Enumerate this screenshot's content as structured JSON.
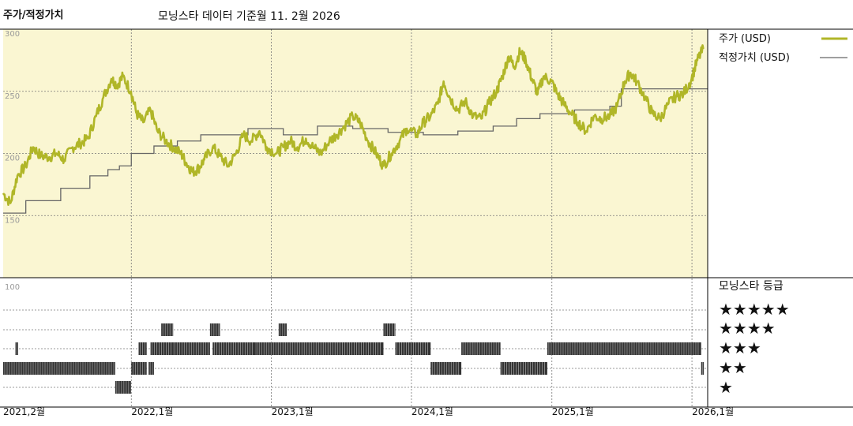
{
  "header": {
    "title": "주가/적정가치",
    "subtitle": "모닝스타 데이터 기준월 11. 2월 2026"
  },
  "legend": {
    "price_label": "주가 (USD)",
    "fair_value_label": "적정가치 (USD)",
    "rating_title": "모닝스타 등급",
    "star_rows": [
      "★★★★★",
      "★★★★",
      "★★★",
      "★★",
      "★"
    ]
  },
  "colors": {
    "price": "#b0b628",
    "fair_value": "#666666",
    "plot_bg": "#faf6d2",
    "rating_bar": "#333333"
  },
  "chart_data": {
    "type": "line",
    "x_axis": {
      "start": "2021-02",
      "end": "2026-02",
      "tick_labels": [
        "2021,2월",
        "2022,1월",
        "2023,1월",
        "2024,1월",
        "2025,1월",
        "2026,1월"
      ],
      "tick_dates": [
        "2021-02",
        "2022-01",
        "2023-01",
        "2024-01",
        "2025-01",
        "2026-01"
      ]
    },
    "price_panel": {
      "ylim": [
        100,
        300
      ],
      "y_ticks": [
        300,
        250,
        200,
        150
      ],
      "series": [
        {
          "name": "주가 (USD)",
          "points": [
            [
              "2021-02-01",
              168
            ],
            [
              "2021-02-20",
              160
            ],
            [
              "2021-03-10",
              182
            ],
            [
              "2021-04-01",
              190
            ],
            [
              "2021-04-20",
              205
            ],
            [
              "2021-05-10",
              198
            ],
            [
              "2021-06-01",
              197
            ],
            [
              "2021-06-20",
              200
            ],
            [
              "2021-07-10",
              195
            ],
            [
              "2021-08-01",
              205
            ],
            [
              "2021-08-20",
              208
            ],
            [
              "2021-09-10",
              212
            ],
            [
              "2021-10-01",
              230
            ],
            [
              "2021-10-20",
              245
            ],
            [
              "2021-11-10",
              260
            ],
            [
              "2021-11-25",
              255
            ],
            [
              "2021-12-10",
              262
            ],
            [
              "2021-12-31",
              250
            ],
            [
              "2022-01-15",
              232
            ],
            [
              "2022-02-01",
              225
            ],
            [
              "2022-02-20",
              235
            ],
            [
              "2022-03-10",
              218
            ],
            [
              "2022-04-01",
              210
            ],
            [
              "2022-04-20",
              205
            ],
            [
              "2022-05-10",
              200
            ],
            [
              "2022-05-25",
              192
            ],
            [
              "2022-06-10",
              185
            ],
            [
              "2022-06-25",
              188
            ],
            [
              "2022-07-10",
              195
            ],
            [
              "2022-08-01",
              205
            ],
            [
              "2022-08-20",
              198
            ],
            [
              "2022-09-10",
              190
            ],
            [
              "2022-10-01",
              200
            ],
            [
              "2022-10-20",
              215
            ],
            [
              "2022-11-10",
              210
            ],
            [
              "2022-12-01",
              218
            ],
            [
              "2022-12-20",
              205
            ],
            [
              "2023-01-15",
              200
            ],
            [
              "2023-02-01",
              205
            ],
            [
              "2023-02-20",
              210
            ],
            [
              "2023-03-10",
              205
            ],
            [
              "2023-04-01",
              212
            ],
            [
              "2023-04-20",
              205
            ],
            [
              "2023-05-10",
              200
            ],
            [
              "2023-06-01",
              210
            ],
            [
              "2023-06-20",
              215
            ],
            [
              "2023-07-10",
              222
            ],
            [
              "2023-08-01",
              230
            ],
            [
              "2023-08-20",
              225
            ],
            [
              "2023-09-10",
              210
            ],
            [
              "2023-10-01",
              200
            ],
            [
              "2023-10-20",
              190
            ],
            [
              "2023-11-10",
              200
            ],
            [
              "2023-12-01",
              210
            ],
            [
              "2023-12-20",
              220
            ],
            [
              "2024-01-15",
              215
            ],
            [
              "2024-02-01",
              225
            ],
            [
              "2024-02-20",
              230
            ],
            [
              "2024-03-10",
              240
            ],
            [
              "2024-03-25",
              258
            ],
            [
              "2024-04-10",
              245
            ],
            [
              "2024-05-01",
              235
            ],
            [
              "2024-05-20",
              242
            ],
            [
              "2024-06-10",
              230
            ],
            [
              "2024-07-01",
              228
            ],
            [
              "2024-07-20",
              240
            ],
            [
              "2024-08-10",
              250
            ],
            [
              "2024-08-25",
              262
            ],
            [
              "2024-09-10",
              278
            ],
            [
              "2024-09-25",
              270
            ],
            [
              "2024-10-10",
              282
            ],
            [
              "2024-10-25",
              275
            ],
            [
              "2024-11-10",
              260
            ],
            [
              "2024-11-25",
              248
            ],
            [
              "2024-12-10",
              262
            ],
            [
              "2024-12-31",
              258
            ],
            [
              "2025-01-15",
              248
            ],
            [
              "2025-02-01",
              240
            ],
            [
              "2025-02-20",
              232
            ],
            [
              "2025-03-10",
              225
            ],
            [
              "2025-04-01",
              218
            ],
            [
              "2025-04-20",
              230
            ],
            [
              "2025-05-10",
              228
            ],
            [
              "2025-06-01",
              230
            ],
            [
              "2025-06-20",
              238
            ],
            [
              "2025-07-10",
              258
            ],
            [
              "2025-07-25",
              265
            ],
            [
              "2025-08-10",
              258
            ],
            [
              "2025-09-01",
              245
            ],
            [
              "2025-09-20",
              232
            ],
            [
              "2025-10-10",
              228
            ],
            [
              "2025-11-01",
              240
            ],
            [
              "2025-11-20",
              246
            ],
            [
              "2025-12-10",
              248
            ],
            [
              "2025-12-31",
              260
            ],
            [
              "2026-01-15",
              275
            ],
            [
              "2026-02-01",
              285
            ]
          ]
        },
        {
          "name": "적정가치 (USD)",
          "step": true,
          "points": [
            [
              "2021-02-01",
              152
            ],
            [
              "2021-04-01",
              162
            ],
            [
              "2021-07-01",
              172
            ],
            [
              "2021-09-15",
              182
            ],
            [
              "2021-11-01",
              187
            ],
            [
              "2021-12-01",
              190
            ],
            [
              "2022-01-01",
              200
            ],
            [
              "2022-03-01",
              206
            ],
            [
              "2022-05-01",
              210
            ],
            [
              "2022-07-01",
              215
            ],
            [
              "2022-11-01",
              220
            ],
            [
              "2023-02-01",
              215
            ],
            [
              "2023-05-01",
              222
            ],
            [
              "2023-08-01",
              220
            ],
            [
              "2023-11-01",
              217
            ],
            [
              "2024-02-01",
              215
            ],
            [
              "2024-05-01",
              218
            ],
            [
              "2024-08-01",
              222
            ],
            [
              "2024-10-01",
              228
            ],
            [
              "2024-12-01",
              232
            ],
            [
              "2025-03-01",
              235
            ],
            [
              "2025-06-01",
              238
            ],
            [
              "2025-07-01",
              252
            ],
            [
              "2026-02-11",
              252
            ]
          ]
        }
      ]
    },
    "rating_panel": {
      "ylim": [
        0,
        100
      ],
      "y_ticks": [
        100
      ],
      "levels": [
        "★★★★★",
        "★★★★",
        "★★★",
        "★★",
        "★"
      ],
      "segments": [
        {
          "start": "2021-02-01",
          "end": "2021-11-20",
          "stars": 2
        },
        {
          "start": "2021-03-05",
          "end": "2021-03-12",
          "stars": 3
        },
        {
          "start": "2021-11-20",
          "end": "2021-12-31",
          "stars": 1
        },
        {
          "start": "2022-01-01",
          "end": "2022-02-10",
          "stars": 2
        },
        {
          "start": "2022-01-20",
          "end": "2022-02-10",
          "stars": 3
        },
        {
          "start": "2022-02-15",
          "end": "2022-03-01",
          "stars": 2
        },
        {
          "start": "2022-02-20",
          "end": "2022-04-20",
          "stars": 3
        },
        {
          "start": "2022-03-20",
          "end": "2022-04-20",
          "stars": 4
        },
        {
          "start": "2022-04-20",
          "end": "2022-07-25",
          "stars": 3
        },
        {
          "start": "2022-07-25",
          "end": "2022-08-20",
          "stars": 4
        },
        {
          "start": "2022-08-01",
          "end": "2022-11-20",
          "stars": 3
        },
        {
          "start": "2022-11-20",
          "end": "2023-07-01",
          "stars": 3
        },
        {
          "start": "2023-01-20",
          "end": "2023-02-10",
          "stars": 4
        },
        {
          "start": "2023-07-01",
          "end": "2023-10-20",
          "stars": 3
        },
        {
          "start": "2023-10-20",
          "end": "2023-11-20",
          "stars": 4
        },
        {
          "start": "2023-11-20",
          "end": "2024-02-20",
          "stars": 3
        },
        {
          "start": "2024-02-20",
          "end": "2024-05-10",
          "stars": 2
        },
        {
          "start": "2024-05-10",
          "end": "2024-06-10",
          "stars": 3
        },
        {
          "start": "2024-06-10",
          "end": "2024-08-20",
          "stars": 3
        },
        {
          "start": "2024-08-20",
          "end": "2024-12-20",
          "stars": 2
        },
        {
          "start": "2024-12-20",
          "end": "2025-01-20",
          "stars": 3
        },
        {
          "start": "2025-01-20",
          "end": "2026-01-25",
          "stars": 3
        },
        {
          "start": "2026-01-25",
          "end": "2026-02-01",
          "stars": 2
        }
      ]
    }
  }
}
